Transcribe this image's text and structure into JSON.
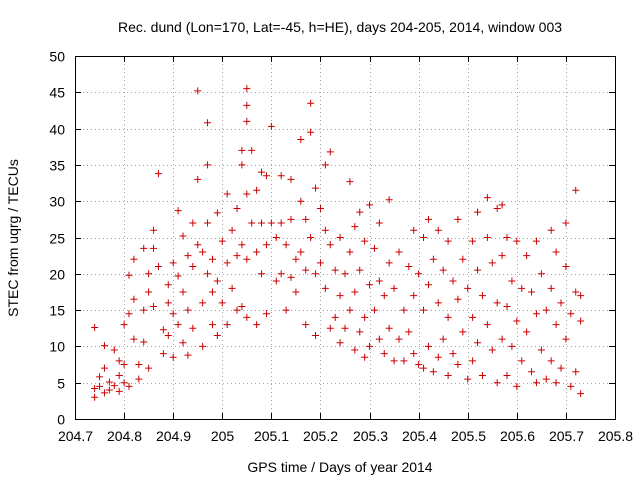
{
  "chart_data": {
    "type": "scatter",
    "title": "Rec. dund (Lon=170, Lat=-45, h=HE), days 204-205, 2014, window 003",
    "xlabel": "GPS time / Days of year 2014",
    "ylabel": "STEC from uqrg / TECUs",
    "xlim": [
      204.7,
      205.8
    ],
    "ylim": [
      0,
      50
    ],
    "xticks": [
      204.7,
      204.8,
      204.9,
      205.0,
      205.1,
      205.2,
      205.3,
      205.4,
      205.5,
      205.6,
      205.7,
      205.8
    ],
    "xtick_labels": [
      "204.7",
      "204.8",
      "204.9",
      "205",
      "205.1",
      "205.2",
      "205.3",
      "205.4",
      "205.5",
      "205.6",
      "205.7",
      "205.8"
    ],
    "yticks": [
      0,
      5,
      10,
      15,
      20,
      25,
      30,
      35,
      40,
      45,
      50
    ],
    "ytick_labels": [
      "0",
      "5",
      "10",
      "15",
      "20",
      "25",
      "30",
      "35",
      "40",
      "45",
      "50"
    ],
    "grid": true,
    "marker": "+",
    "colors": {
      "points": "#cc0000",
      "grid": "#a0a0a0",
      "axes": "#000000"
    },
    "points": [
      [
        204.74,
        12.6
      ],
      [
        204.74,
        4.2
      ],
      [
        204.74,
        3.0
      ],
      [
        204.75,
        4.5
      ],
      [
        204.75,
        5.8
      ],
      [
        204.76,
        7.0
      ],
      [
        204.76,
        3.6
      ],
      [
        204.76,
        10.1
      ],
      [
        204.77,
        5.1
      ],
      [
        204.77,
        4.0
      ],
      [
        204.78,
        9.5
      ],
      [
        204.78,
        4.6
      ],
      [
        204.79,
        8.0
      ],
      [
        204.79,
        6.0
      ],
      [
        204.79,
        3.8
      ],
      [
        204.8,
        13.0
      ],
      [
        204.8,
        7.5
      ],
      [
        204.8,
        5.0
      ],
      [
        204.81,
        14.5
      ],
      [
        204.81,
        4.5
      ],
      [
        204.81,
        19.8
      ],
      [
        204.82,
        22.0
      ],
      [
        204.82,
        16.5
      ],
      [
        204.82,
        11.0
      ],
      [
        204.83,
        7.5
      ],
      [
        204.83,
        5.5
      ],
      [
        204.84,
        23.5
      ],
      [
        204.84,
        15.0
      ],
      [
        204.84,
        10.6
      ],
      [
        204.85,
        20.0
      ],
      [
        204.85,
        7.0
      ],
      [
        204.85,
        17.5
      ],
      [
        204.86,
        26.0
      ],
      [
        204.86,
        23.5
      ],
      [
        204.86,
        15.5
      ],
      [
        204.87,
        33.8
      ],
      [
        204.87,
        21.0
      ],
      [
        204.88,
        12.3
      ],
      [
        204.88,
        9.0
      ],
      [
        204.89,
        18.5
      ],
      [
        204.89,
        16.0
      ],
      [
        204.89,
        11.5
      ],
      [
        204.9,
        21.5
      ],
      [
        204.9,
        14.5
      ],
      [
        204.9,
        8.5
      ],
      [
        204.91,
        28.7
      ],
      [
        204.91,
        19.7
      ],
      [
        204.91,
        13.0
      ],
      [
        204.92,
        25.2
      ],
      [
        204.92,
        17.5
      ],
      [
        204.92,
        10.5
      ],
      [
        204.93,
        22.5
      ],
      [
        204.93,
        15.0
      ],
      [
        204.93,
        8.8
      ],
      [
        204.94,
        27.0
      ],
      [
        204.94,
        21.0
      ],
      [
        204.94,
        12.5
      ],
      [
        204.95,
        45.2
      ],
      [
        204.95,
        33.0
      ],
      [
        204.95,
        24.0
      ],
      [
        204.96,
        23.0
      ],
      [
        204.96,
        16.0
      ],
      [
        204.96,
        10.0
      ],
      [
        204.97,
        40.8
      ],
      [
        204.97,
        35.0
      ],
      [
        204.97,
        27.0
      ],
      [
        204.97,
        20.0
      ],
      [
        204.98,
        22.0
      ],
      [
        204.98,
        17.5
      ],
      [
        204.98,
        13.0
      ],
      [
        204.99,
        28.4
      ],
      [
        204.99,
        19.0
      ],
      [
        204.99,
        11.5
      ],
      [
        205.0,
        24.5
      ],
      [
        205.0,
        16.0
      ],
      [
        205.01,
        31.0
      ],
      [
        205.01,
        21.5
      ],
      [
        205.01,
        13.0
      ],
      [
        205.02,
        26.0
      ],
      [
        205.02,
        18.0
      ],
      [
        205.03,
        29.0
      ],
      [
        205.03,
        22.5
      ],
      [
        205.03,
        15.0
      ],
      [
        205.04,
        37.0
      ],
      [
        205.04,
        35.0
      ],
      [
        205.04,
        24.0
      ],
      [
        205.04,
        15.5
      ],
      [
        205.05,
        45.5
      ],
      [
        205.05,
        43.2
      ],
      [
        205.05,
        41.0
      ],
      [
        205.05,
        31.0
      ],
      [
        205.05,
        22.0
      ],
      [
        205.05,
        14.0
      ],
      [
        205.06,
        37.0
      ],
      [
        205.06,
        27.0
      ],
      [
        205.07,
        31.5
      ],
      [
        205.07,
        23.0
      ],
      [
        205.07,
        13.0
      ],
      [
        205.08,
        34.0
      ],
      [
        205.08,
        27.0
      ],
      [
        205.08,
        20.0
      ],
      [
        205.09,
        33.5
      ],
      [
        205.09,
        24.0
      ],
      [
        205.09,
        14.5
      ],
      [
        205.1,
        40.3
      ],
      [
        205.1,
        27.0
      ],
      [
        205.11,
        25.0
      ],
      [
        205.11,
        19.0
      ],
      [
        205.12,
        33.5
      ],
      [
        205.12,
        27.0
      ],
      [
        205.12,
        20.0
      ],
      [
        205.13,
        24.0
      ],
      [
        205.13,
        15.0
      ],
      [
        205.14,
        33.0
      ],
      [
        205.14,
        27.5
      ],
      [
        205.14,
        19.5
      ],
      [
        205.15,
        22.0
      ],
      [
        205.15,
        17.5
      ],
      [
        205.16,
        38.5
      ],
      [
        205.16,
        30.0
      ],
      [
        205.16,
        23.0
      ],
      [
        205.17,
        27.5
      ],
      [
        205.17,
        20.5
      ],
      [
        205.17,
        13.0
      ],
      [
        205.18,
        43.5
      ],
      [
        205.18,
        39.5
      ],
      [
        205.18,
        25.0
      ],
      [
        205.19,
        31.8
      ],
      [
        205.19,
        20.0
      ],
      [
        205.19,
        11.5
      ],
      [
        205.2,
        29.0
      ],
      [
        205.2,
        21.5
      ],
      [
        205.21,
        35.0
      ],
      [
        205.21,
        26.0
      ],
      [
        205.21,
        18.0
      ],
      [
        205.22,
        36.8
      ],
      [
        205.22,
        24.0
      ],
      [
        205.22,
        12.5
      ],
      [
        205.23,
        20.5
      ],
      [
        205.23,
        14.0
      ],
      [
        205.24,
        25.0
      ],
      [
        205.24,
        17.0
      ],
      [
        205.24,
        10.5
      ],
      [
        205.25,
        20.0
      ],
      [
        205.25,
        12.5
      ],
      [
        205.26,
        32.7
      ],
      [
        205.26,
        23.0
      ],
      [
        205.26,
        15.0
      ],
      [
        205.27,
        26.5
      ],
      [
        205.27,
        17.5
      ],
      [
        205.27,
        9.5
      ],
      [
        205.28,
        28.5
      ],
      [
        205.28,
        20.5
      ],
      [
        205.28,
        12.0
      ],
      [
        205.29,
        24.5
      ],
      [
        205.29,
        14.0
      ],
      [
        205.29,
        8.5
      ],
      [
        205.3,
        29.5
      ],
      [
        205.3,
        18.5
      ],
      [
        205.3,
        10.0
      ],
      [
        205.31,
        23.5
      ],
      [
        205.31,
        15.0
      ],
      [
        205.32,
        27.0
      ],
      [
        205.32,
        19.0
      ],
      [
        205.32,
        11.0
      ],
      [
        205.33,
        17.0
      ],
      [
        205.33,
        9.0
      ],
      [
        205.34,
        30.2
      ],
      [
        205.34,
        21.5
      ],
      [
        205.34,
        12.5
      ],
      [
        205.35,
        18.0
      ],
      [
        205.35,
        8.0
      ],
      [
        205.36,
        23.0
      ],
      [
        205.36,
        11.0
      ],
      [
        205.37,
        15.0
      ],
      [
        205.37,
        8.0
      ],
      [
        205.38,
        21.0
      ],
      [
        205.38,
        12.0
      ],
      [
        205.39,
        26.0
      ],
      [
        205.39,
        17.0
      ],
      [
        205.39,
        9.0
      ],
      [
        205.4,
        20.0
      ],
      [
        205.4,
        7.5
      ],
      [
        205.41,
        25.0
      ],
      [
        205.41,
        15.0
      ],
      [
        205.41,
        7.0
      ],
      [
        205.42,
        27.5
      ],
      [
        205.42,
        18.5
      ],
      [
        205.42,
        10.0
      ],
      [
        205.43,
        22.0
      ],
      [
        205.43,
        6.5
      ],
      [
        205.44,
        26.0
      ],
      [
        205.44,
        16.0
      ],
      [
        205.44,
        8.5
      ],
      [
        205.45,
        20.5
      ],
      [
        205.45,
        11.0
      ],
      [
        205.46,
        24.5
      ],
      [
        205.46,
        14.0
      ],
      [
        205.46,
        6.0
      ],
      [
        205.47,
        19.0
      ],
      [
        205.47,
        9.0
      ],
      [
        205.48,
        27.5
      ],
      [
        205.48,
        16.5
      ],
      [
        205.48,
        7.5
      ],
      [
        205.49,
        22.0
      ],
      [
        205.49,
        12.0
      ],
      [
        205.5,
        18.0
      ],
      [
        205.5,
        5.5
      ],
      [
        205.51,
        24.5
      ],
      [
        205.51,
        14.0
      ],
      [
        205.51,
        8.0
      ],
      [
        205.52,
        28.5
      ],
      [
        205.52,
        20.5
      ],
      [
        205.52,
        10.5
      ],
      [
        205.53,
        17.0
      ],
      [
        205.53,
        6.0
      ],
      [
        205.54,
        30.5
      ],
      [
        205.54,
        25.0
      ],
      [
        205.54,
        13.0
      ],
      [
        205.55,
        21.5
      ],
      [
        205.55,
        9.5
      ],
      [
        205.56,
        29.0
      ],
      [
        205.56,
        16.0
      ],
      [
        205.56,
        5.0
      ],
      [
        205.57,
        29.5
      ],
      [
        205.57,
        22.5
      ],
      [
        205.57,
        11.0
      ],
      [
        205.58,
        25.0
      ],
      [
        205.58,
        15.5
      ],
      [
        205.58,
        6.0
      ],
      [
        205.59,
        19.0
      ],
      [
        205.59,
        10.0
      ],
      [
        205.6,
        24.5
      ],
      [
        205.6,
        13.5
      ],
      [
        205.6,
        4.5
      ],
      [
        205.61,
        18.0
      ],
      [
        205.61,
        8.0
      ],
      [
        205.62,
        22.5
      ],
      [
        205.62,
        12.0
      ],
      [
        205.63,
        17.5
      ],
      [
        205.63,
        6.5
      ],
      [
        205.64,
        24.5
      ],
      [
        205.64,
        14.5
      ],
      [
        205.64,
        5.0
      ],
      [
        205.65,
        20.0
      ],
      [
        205.65,
        9.5
      ],
      [
        205.66,
        15.0
      ],
      [
        205.66,
        5.5
      ],
      [
        205.67,
        26.0
      ],
      [
        205.67,
        18.0
      ],
      [
        205.67,
        8.0
      ],
      [
        205.68,
        23.0
      ],
      [
        205.68,
        13.0
      ],
      [
        205.68,
        5.0
      ],
      [
        205.69,
        16.0
      ],
      [
        205.69,
        7.0
      ],
      [
        205.7,
        27.0
      ],
      [
        205.7,
        21.0
      ],
      [
        205.7,
        11.0
      ],
      [
        205.71,
        14.5
      ],
      [
        205.71,
        4.5
      ],
      [
        205.72,
        31.5
      ],
      [
        205.72,
        17.5
      ],
      [
        205.72,
        6.5
      ],
      [
        205.73,
        17.0
      ],
      [
        205.73,
        13.5
      ],
      [
        205.73,
        3.5
      ]
    ]
  }
}
